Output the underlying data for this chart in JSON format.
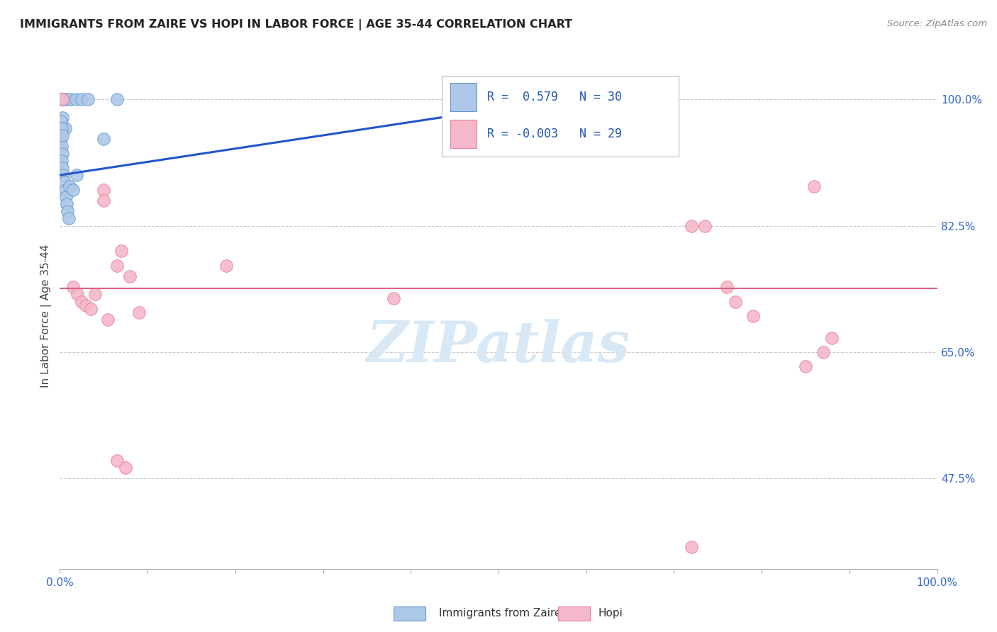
{
  "title": "IMMIGRANTS FROM ZAIRE VS HOPI IN LABOR FORCE | AGE 35-44 CORRELATION CHART",
  "source": "Source: ZipAtlas.com",
  "ylabel": "In Labor Force | Age 35-44",
  "ytick_values": [
    1.0,
    0.825,
    0.65,
    0.475
  ],
  "ytick_labels": [
    "100.0%",
    "82.5%",
    "65.0%",
    "47.5%"
  ],
  "xlim": [
    0.0,
    1.0
  ],
  "ylim": [
    0.35,
    1.05
  ],
  "zaire_R": 0.579,
  "zaire_N": 30,
  "hopi_R": -0.003,
  "hopi_N": 29,
  "zaire_color": "#adc8e8",
  "hopi_color": "#f5b8ca",
  "zaire_edge_color": "#6699cc",
  "hopi_edge_color": "#e8809a",
  "trend_zaire_color": "#2255cc",
  "trend_hopi_color": "#e06080",
  "watermark": "ZIPatlas",
  "watermark_color": "#d8e8f5",
  "zaire_points": [
    [
      0.001,
      1.0
    ],
    [
      0.004,
      1.0
    ],
    [
      0.007,
      1.0
    ],
    [
      0.012,
      1.0
    ],
    [
      0.018,
      1.0
    ],
    [
      0.025,
      1.0
    ],
    [
      0.032,
      1.0
    ],
    [
      0.003,
      0.975
    ],
    [
      0.006,
      0.96
    ],
    [
      0.001,
      0.955
    ],
    [
      0.001,
      0.945
    ],
    [
      0.002,
      0.935
    ],
    [
      0.003,
      0.925
    ],
    [
      0.002,
      0.915
    ],
    [
      0.003,
      0.905
    ],
    [
      0.004,
      0.895
    ],
    [
      0.005,
      0.885
    ],
    [
      0.006,
      0.875
    ],
    [
      0.007,
      0.865
    ],
    [
      0.008,
      0.855
    ],
    [
      0.009,
      0.845
    ],
    [
      0.01,
      0.835
    ],
    [
      0.011,
      0.88
    ],
    [
      0.015,
      0.875
    ],
    [
      0.019,
      0.895
    ],
    [
      0.05,
      0.945
    ],
    [
      0.001,
      0.97
    ],
    [
      0.002,
      0.96
    ],
    [
      0.003,
      0.95
    ],
    [
      0.065,
      1.0
    ]
  ],
  "hopi_points": [
    [
      0.003,
      1.0
    ],
    [
      0.62,
      1.0
    ],
    [
      0.86,
      0.88
    ],
    [
      0.05,
      0.875
    ],
    [
      0.05,
      0.86
    ],
    [
      0.72,
      0.825
    ],
    [
      0.735,
      0.825
    ],
    [
      0.07,
      0.79
    ],
    [
      0.065,
      0.77
    ],
    [
      0.08,
      0.755
    ],
    [
      0.015,
      0.74
    ],
    [
      0.02,
      0.73
    ],
    [
      0.025,
      0.72
    ],
    [
      0.03,
      0.715
    ],
    [
      0.035,
      0.71
    ],
    [
      0.04,
      0.73
    ],
    [
      0.19,
      0.77
    ],
    [
      0.38,
      0.725
    ],
    [
      0.76,
      0.74
    ],
    [
      0.77,
      0.72
    ],
    [
      0.79,
      0.7
    ],
    [
      0.85,
      0.63
    ],
    [
      0.87,
      0.65
    ],
    [
      0.88,
      0.67
    ],
    [
      0.09,
      0.705
    ],
    [
      0.055,
      0.695
    ],
    [
      0.065,
      0.5
    ],
    [
      0.075,
      0.49
    ],
    [
      0.72,
      0.38
    ]
  ],
  "zaire_trend_x": [
    0.0,
    0.68
  ],
  "zaire_trend_y": [
    0.895,
    1.02
  ],
  "hopi_trend_y": 0.738
}
